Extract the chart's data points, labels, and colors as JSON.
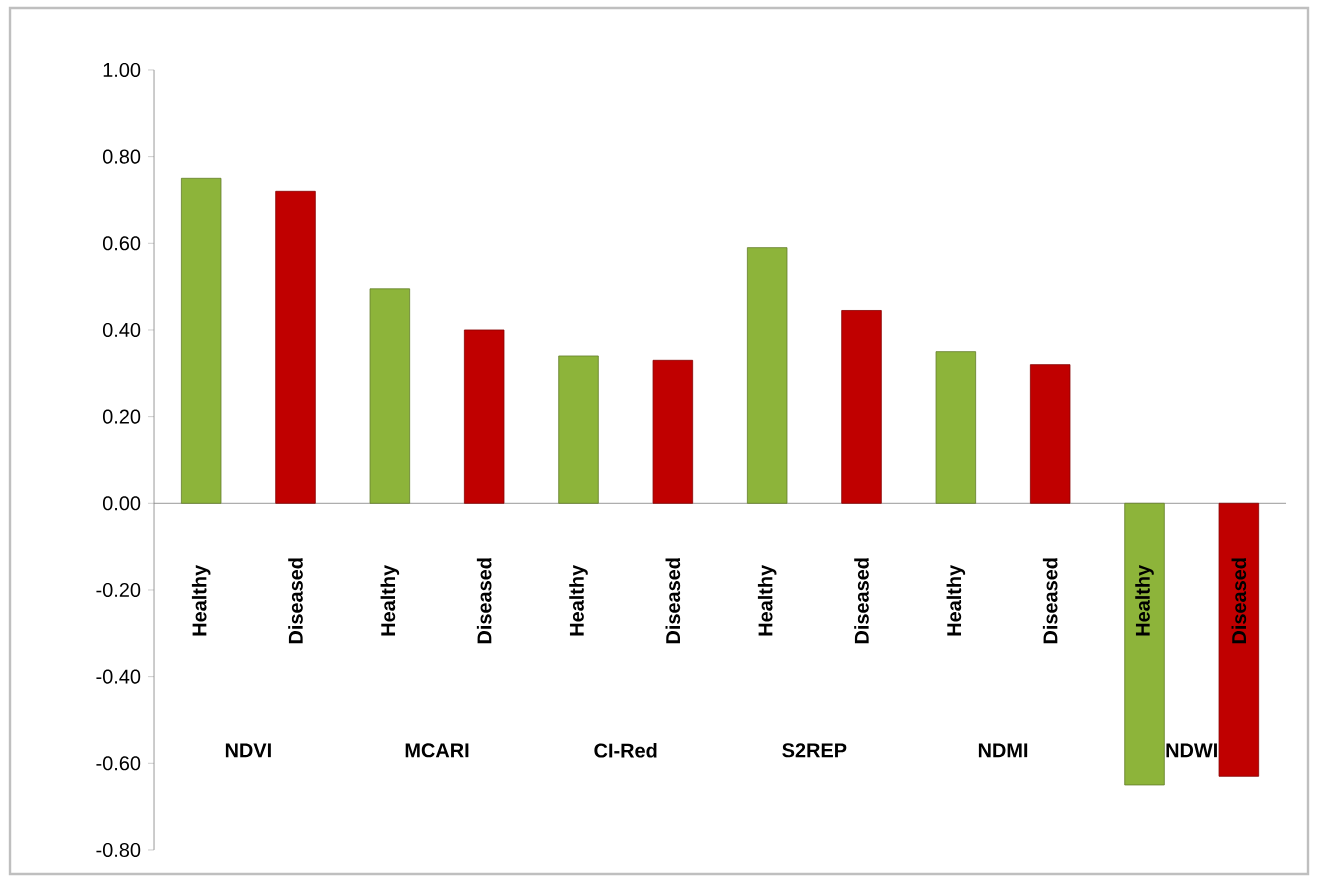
{
  "chart_data": {
    "type": "bar",
    "categories": [
      "NDVI",
      "MCARI",
      "CI-Red",
      "S2REP",
      "NDMI",
      "NDWI"
    ],
    "series": [
      {
        "name": "Healthy",
        "color": "#8db43a",
        "values": [
          0.75,
          0.495,
          0.34,
          0.59,
          0.35,
          -0.65
        ]
      },
      {
        "name": "Diseased",
        "color": "#c00000",
        "values": [
          0.72,
          0.4,
          0.33,
          0.445,
          0.32,
          -0.63
        ]
      }
    ],
    "ylim": [
      -0.8,
      1.0
    ],
    "yticks": [
      {
        "value": -0.8,
        "label": "-0.80"
      },
      {
        "value": -0.6,
        "label": "-0.60"
      },
      {
        "value": -0.4,
        "label": "-0.40"
      },
      {
        "value": -0.2,
        "label": "-0.20"
      },
      {
        "value": 0,
        "label": "0.00"
      },
      {
        "value": 0.2,
        "label": "0.20"
      },
      {
        "value": 0.4,
        "label": "0.40"
      },
      {
        "value": 0.6,
        "label": "0.60"
      },
      {
        "value": 0.8,
        "label": "0.80"
      },
      {
        "value": 1.0,
        "label": "1.00"
      }
    ],
    "legend": false
  }
}
